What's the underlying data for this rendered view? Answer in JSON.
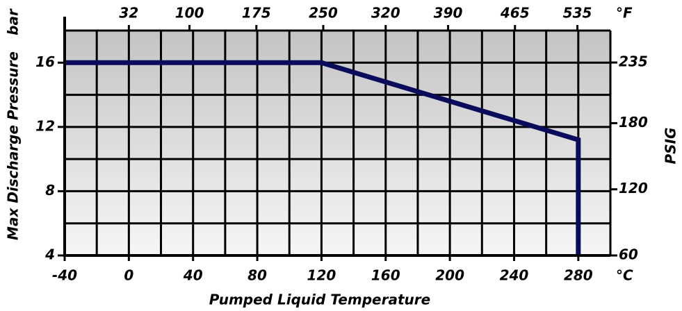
{
  "chart_data": {
    "type": "line",
    "x_title": "Pumped Liquid Temperature",
    "y_title": "Max Discharge Pressure",
    "y_unit": "bar",
    "x_unit": "°C",
    "x2_unit": "°F",
    "y2_title": "PSIG",
    "xlim": [
      -40,
      300
    ],
    "xticks": [
      -40,
      0,
      40,
      80,
      120,
      160,
      200,
      240,
      280
    ],
    "xgrid": [
      -40,
      -20,
      0,
      20,
      40,
      60,
      80,
      100,
      120,
      140,
      160,
      180,
      200,
      220,
      240,
      260,
      280,
      300
    ],
    "x2lim": [
      -40,
      572
    ],
    "x2ticks": [
      32,
      100,
      175,
      250,
      320,
      390,
      465,
      535
    ],
    "ylim": [
      4,
      18
    ],
    "yticks": [
      4,
      8,
      12,
      16
    ],
    "ygrid": [
      4,
      6,
      8,
      10,
      12,
      14,
      16,
      18
    ],
    "y2lim": [
      60,
      264
    ],
    "y2ticks": [
      60,
      120,
      180,
      235
    ],
    "grid": true,
    "series": [
      {
        "color": "#0b0b5c",
        "x": [
          -40,
          120,
          280,
          280
        ],
        "values": [
          16,
          16,
          11.2,
          4
        ]
      }
    ]
  }
}
